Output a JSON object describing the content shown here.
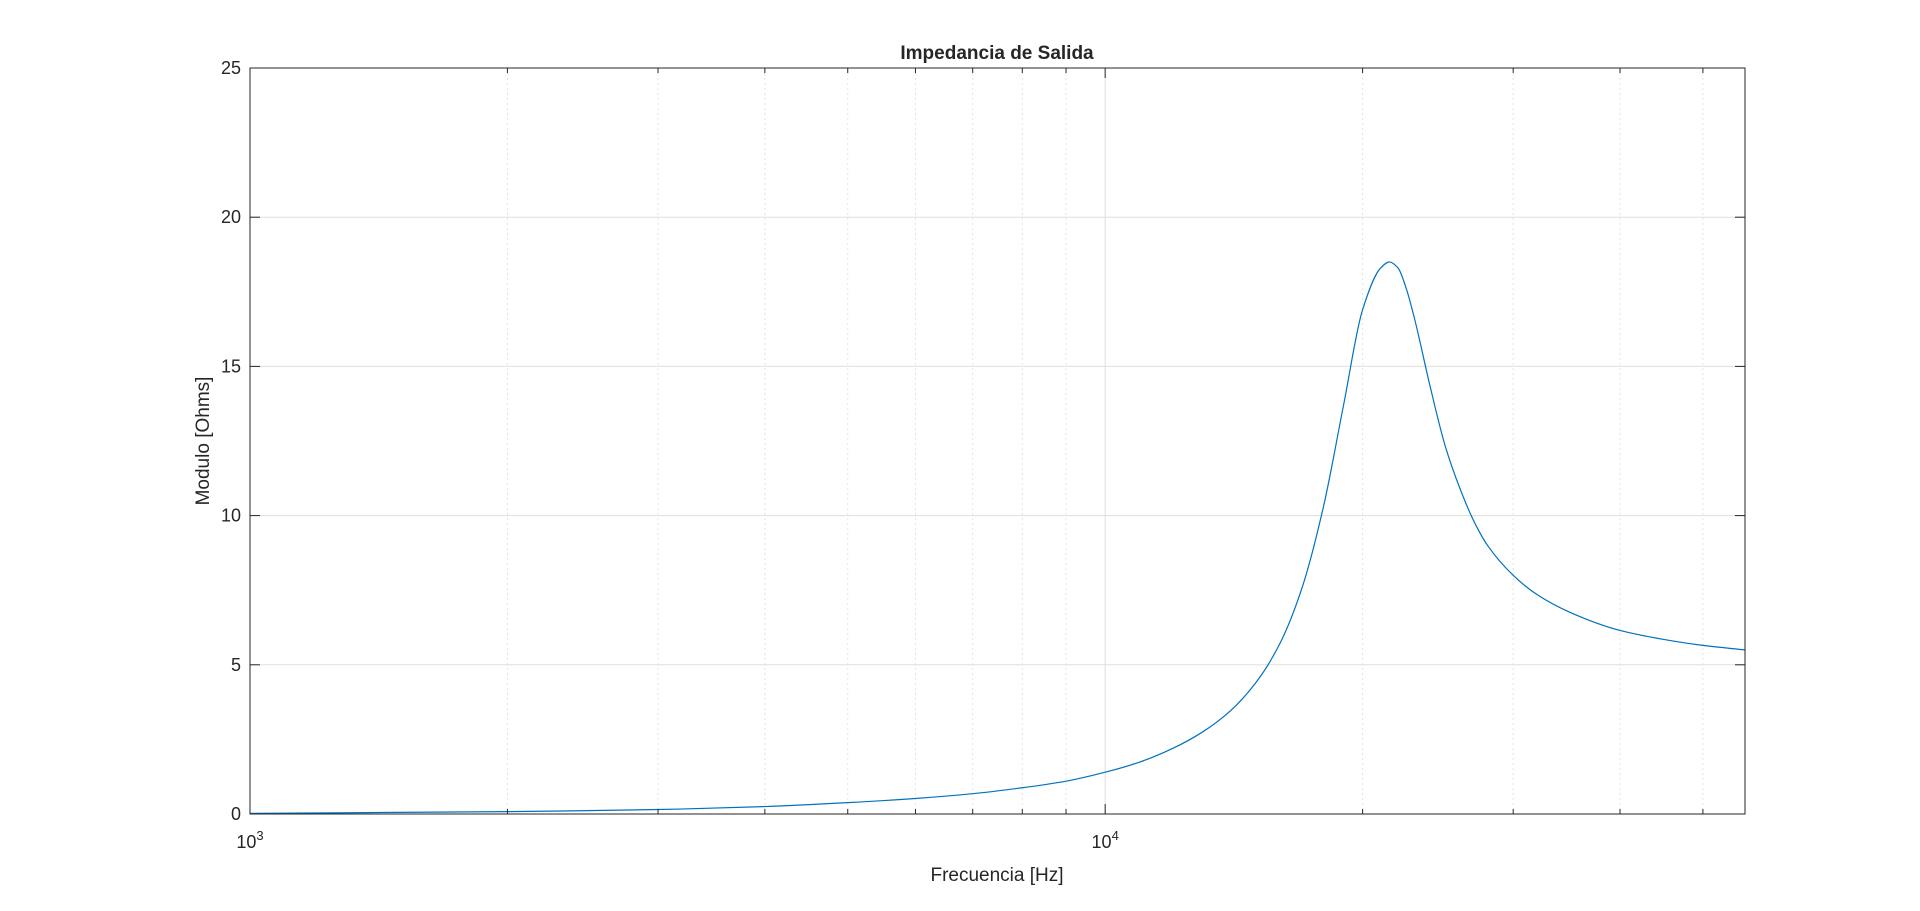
{
  "chart_data": {
    "type": "line",
    "title": "Impedancia de Salida",
    "xlabel": "Frecuencia [Hz]",
    "ylabel": "Modulo [Ohms]",
    "xscale": "log",
    "xlim": [
      1000,
      56000
    ],
    "ylim": [
      0,
      25
    ],
    "grid": true,
    "colors": {
      "line": "#0072BD",
      "axes": "#262626",
      "grid": "#dfdfdf",
      "minor_grid": "#e3e3e3"
    },
    "x_ticks": [
      {
        "base": "10",
        "exp": "3",
        "value": 1000
      },
      {
        "base": "10",
        "exp": "4",
        "value": 10000
      }
    ],
    "y_ticks": [
      {
        "label": "0",
        "value": 0
      },
      {
        "label": "5",
        "value": 5
      },
      {
        "label": "10",
        "value": 10
      },
      {
        "label": "15",
        "value": 15
      },
      {
        "label": "20",
        "value": 20
      },
      {
        "label": "25",
        "value": 25
      }
    ],
    "series": [
      {
        "x": [
          1000,
          2000,
          3000,
          4000,
          5000,
          6000,
          7000,
          8000,
          9000,
          10000,
          11000,
          12000,
          13000,
          14000,
          15000,
          16000,
          17000,
          18000,
          19000,
          20000,
          21000,
          21500,
          22000,
          22500,
          23000,
          24000,
          25000,
          26000,
          27000,
          28000,
          30000,
          32000,
          35000,
          40000,
          45000,
          50000,
          56000
        ],
        "y": [
          0.02,
          0.08,
          0.15,
          0.25,
          0.38,
          0.52,
          0.68,
          0.88,
          1.1,
          1.4,
          1.75,
          2.2,
          2.75,
          3.45,
          4.4,
          5.7,
          7.6,
          10.3,
          13.7,
          16.9,
          18.3,
          18.5,
          18.3,
          17.6,
          16.6,
          14.3,
          12.3,
          10.9,
          9.8,
          9.0,
          8.0,
          7.35,
          6.75,
          6.15,
          5.85,
          5.65,
          5.5
        ]
      }
    ]
  }
}
